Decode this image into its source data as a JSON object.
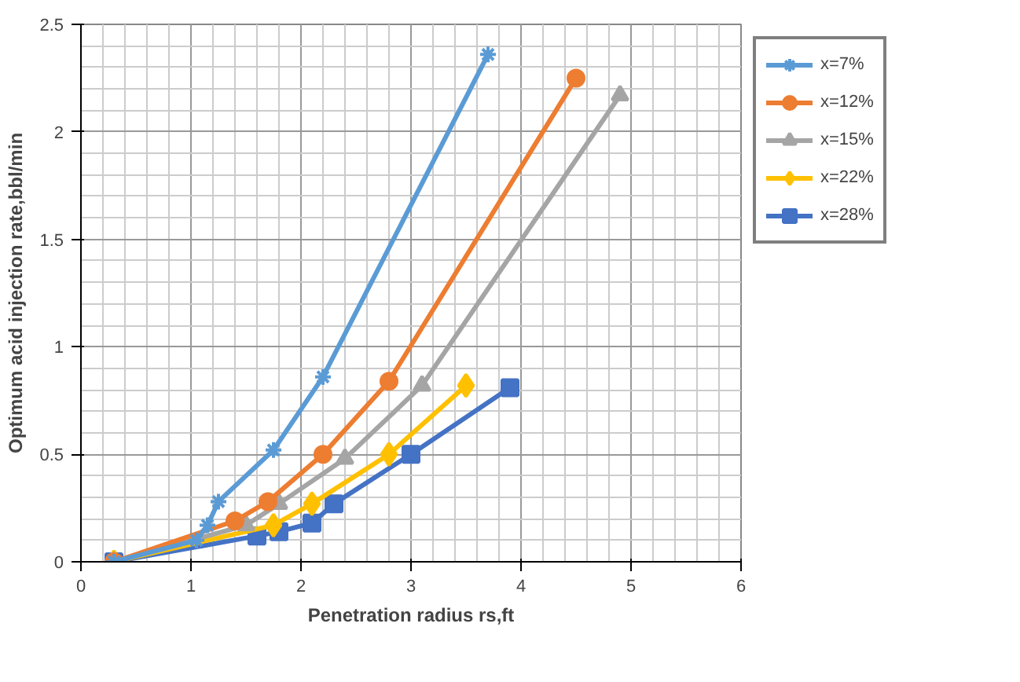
{
  "chart_data": {
    "type": "line",
    "xlabel": "Penetration radius rs,ft",
    "ylabel": "Optimum acid injection rate,bbl/min",
    "xlim": [
      0,
      6
    ],
    "ylim": [
      0,
      2.5
    ],
    "xticks": [
      0,
      1,
      2,
      3,
      4,
      5,
      6
    ],
    "yticks": [
      0,
      0.5,
      1,
      1.5,
      2,
      2.5
    ],
    "grid": true,
    "legend": "right",
    "line_style": "solid",
    "series": [
      {
        "name": "x=7%",
        "color": "#5b9bd5",
        "marker": "cross",
        "x": [
          0.3,
          1.05,
          1.15,
          1.25,
          1.75,
          2.2,
          3.7
        ],
        "values": [
          0,
          0.1,
          0.17,
          0.28,
          0.52,
          0.86,
          2.36
        ]
      },
      {
        "name": "x=12%",
        "color": "#ed7d31",
        "marker": "circle",
        "x": [
          0.3,
          1.4,
          1.7,
          2.2,
          2.8,
          4.5
        ],
        "values": [
          0,
          0.19,
          0.28,
          0.5,
          0.84,
          2.25
        ]
      },
      {
        "name": "x=15%",
        "color": "#a5a5a5",
        "marker": "triangle",
        "x": [
          0.3,
          1.5,
          1.8,
          2.4,
          3.1,
          4.9
        ],
        "values": [
          0,
          0.17,
          0.27,
          0.48,
          0.82,
          2.17
        ]
      },
      {
        "name": "x=22%",
        "color": "#ffc000",
        "marker": "diamond",
        "x": [
          0.3,
          1.75,
          2.1,
          2.8,
          3.5
        ],
        "values": [
          0,
          0.17,
          0.27,
          0.5,
          0.82
        ]
      },
      {
        "name": "x=28%",
        "color": "#4472c4",
        "marker": "square",
        "x": [
          0.3,
          1.6,
          1.8,
          2.1,
          2.3,
          3.0,
          3.9
        ],
        "values": [
          0,
          0.12,
          0.14,
          0.18,
          0.27,
          0.5,
          0.81
        ]
      }
    ]
  }
}
